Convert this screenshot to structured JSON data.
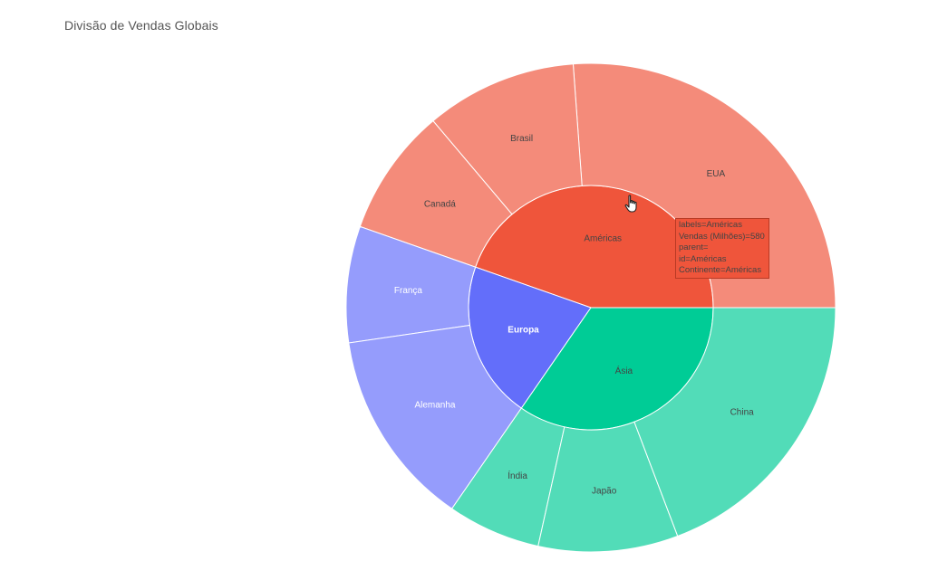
{
  "chart_data": {
    "type": "sunburst",
    "title": "Divisão de Vendas Globais",
    "value_label": "Vendas (Milhões)",
    "colors": {
      "Américas": "#EF553B",
      "Ásia": "#00CC96",
      "Europa": "#636EFA"
    },
    "inner": [
      {
        "id": "Américas",
        "label": "Américas",
        "value": 580
      },
      {
        "id": "Europa",
        "label": "Europa",
        "value": 270
      },
      {
        "id": "Ásia",
        "label": "Ásia",
        "value": 450
      }
    ],
    "outer": [
      {
        "label": "EUA",
        "parent": "Américas",
        "value": 340
      },
      {
        "label": "Brasil",
        "parent": "Américas",
        "value": 130
      },
      {
        "label": "Canadá",
        "parent": "Américas",
        "value": 110
      },
      {
        "label": "França",
        "parent": "Europa",
        "value": 100
      },
      {
        "label": "Alemanha",
        "parent": "Europa",
        "value": 170
      },
      {
        "label": "Índia",
        "parent": "Ásia",
        "value": 80
      },
      {
        "label": "Japão",
        "parent": "Ásia",
        "value": 120
      },
      {
        "label": "China",
        "parent": "Ásia",
        "value": 250
      }
    ]
  },
  "tooltip": {
    "lines": [
      "labels=Américas",
      "Vendas (Milhões)=580",
      "parent=",
      "id=Américas",
      "Continente=Américas"
    ]
  }
}
